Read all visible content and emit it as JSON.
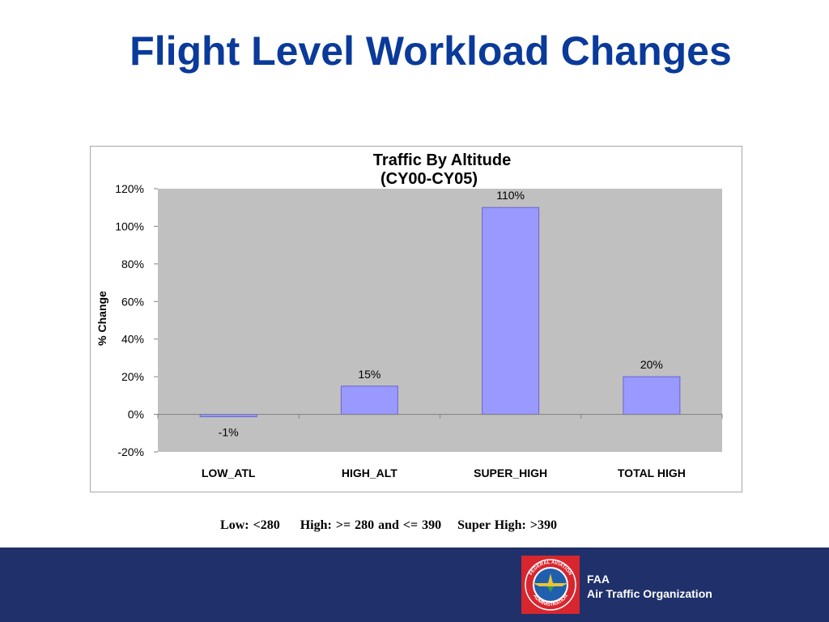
{
  "slide": {
    "title": "Flight Level Workload Changes",
    "note": "Low: <280     High: >= 280 and <= 390    Super High: >390"
  },
  "footer": {
    "org_short": "FAA",
    "org_name": "Air Traffic Organization",
    "logo_ring_top": "FEDERAL AVIATION",
    "logo_ring_bottom": "ADMINISTRATION"
  },
  "colors": {
    "title": "#0a3a9a",
    "plot_background": "#c0c0c0",
    "bar_fill": "#9999ff",
    "bar_stroke": "#6666cc",
    "footer_background": "#20306a",
    "logo_red": "#d8262e"
  },
  "chart_data": {
    "type": "bar",
    "title": "Traffic By Altitude",
    "subtitle": "(CY00-CY05)",
    "xlabel": "",
    "ylabel": "% Change",
    "categories": [
      "LOW_ATL",
      "HIGH_ALT",
      "SUPER_HIGH",
      "TOTAL HIGH"
    ],
    "values": [
      -1,
      15,
      110,
      20
    ],
    "data_labels": [
      "-1%",
      "15%",
      "110%",
      "20%"
    ],
    "ylim": [
      -20,
      120
    ],
    "yticks": [
      -20,
      0,
      20,
      40,
      60,
      80,
      100,
      120
    ],
    "ytick_labels": [
      "-20%",
      "0%",
      "20%",
      "40%",
      "60%",
      "80%",
      "100%",
      "120%"
    ],
    "grid": false,
    "legend": "none"
  }
}
